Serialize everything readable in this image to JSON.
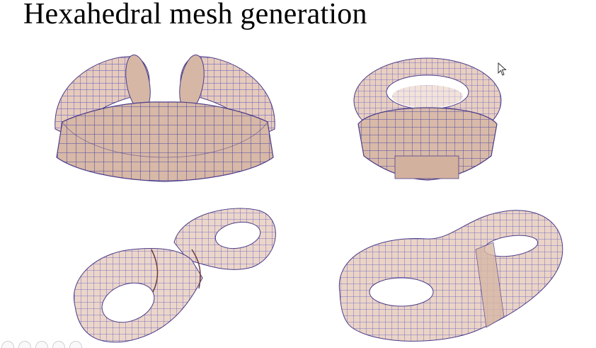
{
  "slide": {
    "title": "Hexahedral mesh generation"
  },
  "colors": {
    "surface_fill": "#e8cfc0",
    "surface_shade": "#c9a898",
    "inner_fill": "#dcc0ad",
    "grid_line": "#5a56c8",
    "edge_line": "#4a3c8a",
    "title_text": "#000000"
  },
  "meshes": [
    {
      "name": "open-torus-cutaway",
      "shape": "torus-cutaway-front"
    },
    {
      "name": "torus-cutaway",
      "shape": "torus-cutaway-center"
    },
    {
      "name": "double-torus-bent",
      "shape": "double-torus"
    },
    {
      "name": "double-torus-cutaway",
      "shape": "double-torus"
    }
  ],
  "icons": {
    "cursor": "mouse-pointer-icon",
    "toolbar": [
      "previous-icon",
      "pen-icon",
      "highlighter-icon",
      "zoom-icon",
      "more-icon"
    ]
  }
}
